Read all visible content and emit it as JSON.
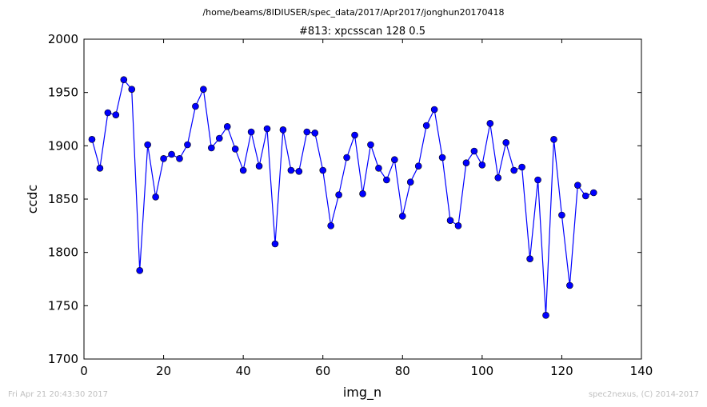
{
  "figure": {
    "suptitle": "/home/beams/8IDIUSER/spec_data/2017/Apr2017/jonghun20170418",
    "footer_left": "Fri Apr 21 20:43:30 2017",
    "footer_right": "spec2nexus, (C) 2014-2017"
  },
  "chart_data": {
    "type": "line",
    "title": "#813: xpcsscan 128 0.5",
    "xlabel": "img_n",
    "ylabel": "ccdc",
    "xlim": [
      0,
      140
    ],
    "ylim": [
      1700,
      2000
    ],
    "xticks": [
      0,
      20,
      40,
      60,
      80,
      100,
      120,
      140
    ],
    "yticks": [
      1700,
      1750,
      1800,
      1850,
      1900,
      1950,
      2000
    ],
    "grid": false,
    "marker": "circle",
    "line_color": "#0000ff",
    "marker_color": "#0000ff",
    "x": [
      2,
      4,
      6,
      8,
      10,
      12,
      14,
      16,
      18,
      20,
      22,
      24,
      26,
      28,
      30,
      32,
      34,
      36,
      38,
      40,
      42,
      44,
      46,
      48,
      50,
      52,
      54,
      56,
      58,
      60,
      62,
      64,
      66,
      68,
      70,
      72,
      74,
      76,
      78,
      80,
      82,
      84,
      86,
      88,
      90,
      92,
      94,
      96,
      98,
      100,
      102,
      104,
      106,
      108,
      110,
      112,
      114,
      116,
      118,
      120,
      122,
      124,
      126,
      128
    ],
    "y": [
      1906,
      1879,
      1931,
      1929,
      1962,
      1953,
      1783,
      1901,
      1852,
      1888,
      1892,
      1888,
      1901,
      1937,
      1953,
      1898,
      1907,
      1918,
      1897,
      1877,
      1913,
      1881,
      1916,
      1808,
      1915,
      1877,
      1876,
      1913,
      1912,
      1877,
      1825,
      1854,
      1889,
      1910,
      1855,
      1901,
      1879,
      1868,
      1887,
      1834,
      1866,
      1881,
      1919,
      1934,
      1889,
      1830,
      1825,
      1884,
      1895,
      1882,
      1921,
      1870,
      1903,
      1877,
      1880,
      1794,
      1868,
      1741,
      1906,
      1835,
      1769,
      1863,
      1853,
      1856
    ]
  }
}
